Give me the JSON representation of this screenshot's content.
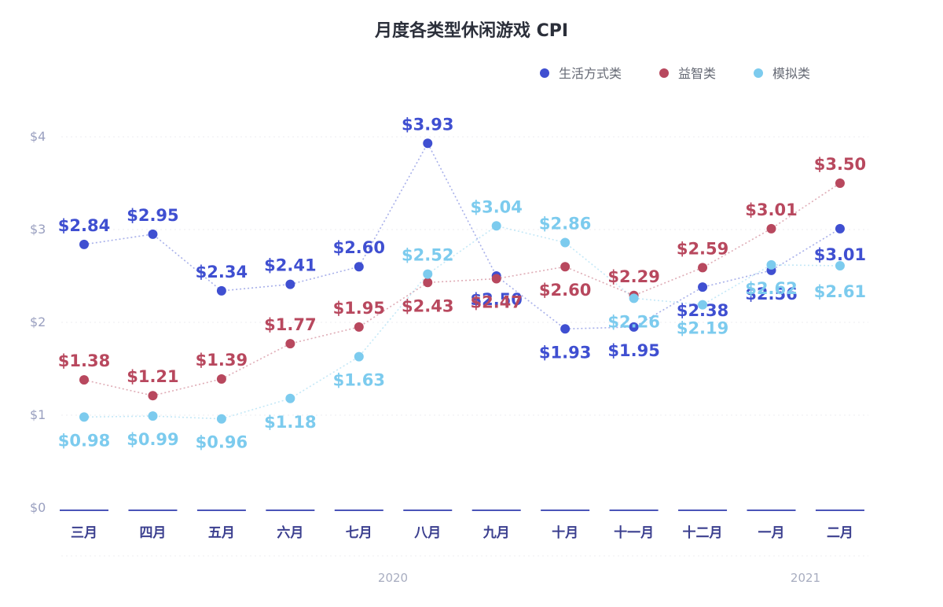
{
  "chart_data": {
    "type": "line",
    "title": "月度各类型休闲游戏 CPI",
    "categories": [
      "三月",
      "四月",
      "五月",
      "六月",
      "七月",
      "八月",
      "九月",
      "十月",
      "十一月",
      "十二月",
      "一月",
      "二月"
    ],
    "years": [
      {
        "label": "2020"
      },
      {
        "label": "2021"
      }
    ],
    "y_ticks": [
      "$0",
      "$1",
      "$2",
      "$3",
      "$4"
    ],
    "ylim": [
      0,
      4
    ],
    "legend_position": "top-right",
    "series": [
      {
        "name": "生活方式类",
        "color": "#3f4fd1",
        "values": [
          2.84,
          2.95,
          2.34,
          2.41,
          2.6,
          3.93,
          2.5,
          1.93,
          1.95,
          2.38,
          2.56,
          3.01
        ],
        "labels": [
          "$2.84",
          "$2.95",
          "$2.34",
          "$2.41",
          "$2.60",
          "$3.93",
          "$2.50",
          "$1.93",
          "$1.95",
          "$2.38",
          "$2.56",
          "$3.01"
        ]
      },
      {
        "name": "益智类",
        "color": "#b8485e",
        "values": [
          1.38,
          1.21,
          1.39,
          1.77,
          1.95,
          2.43,
          2.47,
          2.6,
          2.29,
          2.59,
          3.01,
          3.5
        ],
        "labels": [
          "$1.38",
          "$1.21",
          "$1.39",
          "$1.77",
          "$1.95",
          "$2.43",
          "$2.47",
          "$2.60",
          "$2.29",
          "$2.59",
          "$3.01",
          "$3.50"
        ]
      },
      {
        "name": "模拟类",
        "color": "#7ccbee",
        "values": [
          0.98,
          0.99,
          0.96,
          1.18,
          1.63,
          2.52,
          3.04,
          2.86,
          2.26,
          2.19,
          2.62,
          2.61
        ],
        "labels": [
          "$0.98",
          "$0.99",
          "$0.96",
          "$1.18",
          "$1.63",
          "$2.52",
          "$3.04",
          "$2.86",
          "$2.26",
          "$2.19",
          "$2.62",
          "$2.61"
        ]
      }
    ]
  }
}
